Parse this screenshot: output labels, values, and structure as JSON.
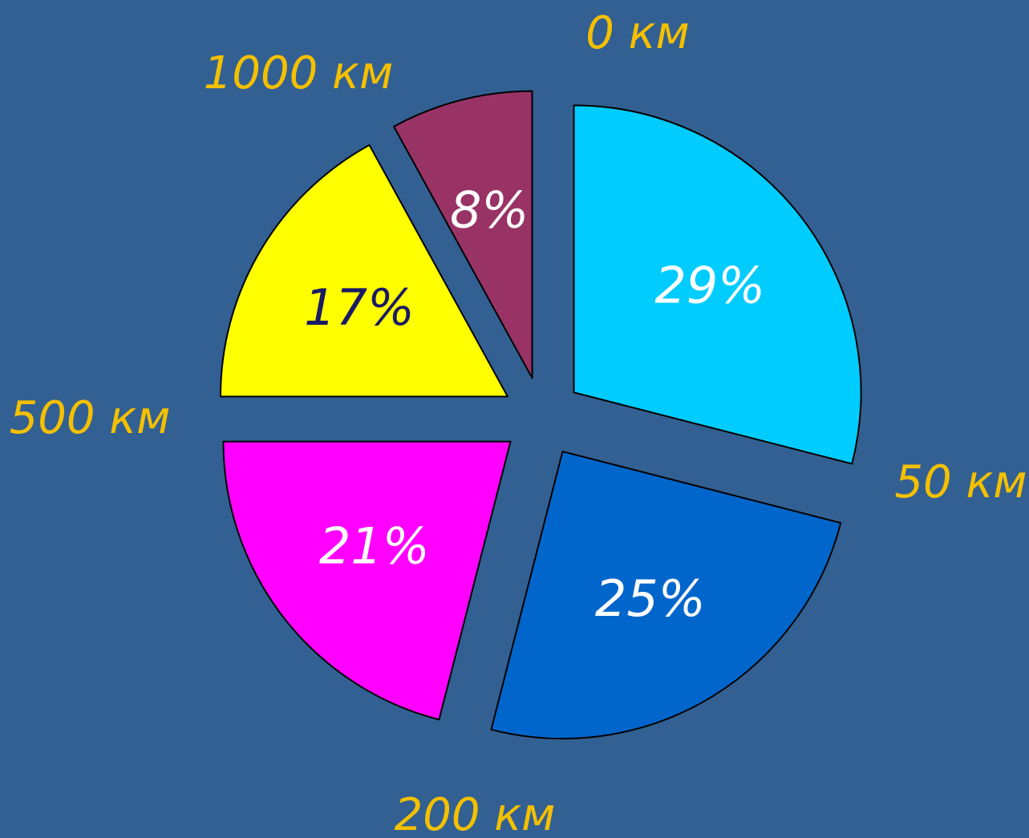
{
  "colors": {
    "background": "#336092",
    "boundary_label": "#f5c000"
  },
  "chart_data": {
    "type": "pie",
    "exploded": true,
    "slices": [
      {
        "value": 29,
        "label": "29%",
        "color": "#00ccff",
        "label_color": "#ffffff"
      },
      {
        "value": 25,
        "label": "25%",
        "color": "#0066cc",
        "label_color": "#ffffff"
      },
      {
        "value": 21,
        "label": "21%",
        "color": "#ff00ff",
        "label_color": "#ffffff"
      },
      {
        "value": 17,
        "label": "17%",
        "color": "#ffff00",
        "label_color": "#1a1a66"
      },
      {
        "value": 8,
        "label": "8%",
        "color": "#993366",
        "label_color": "#ffffff"
      }
    ],
    "boundary_labels": [
      "0 км",
      "50 км",
      "200 км",
      "500 км",
      "1000 км"
    ]
  }
}
